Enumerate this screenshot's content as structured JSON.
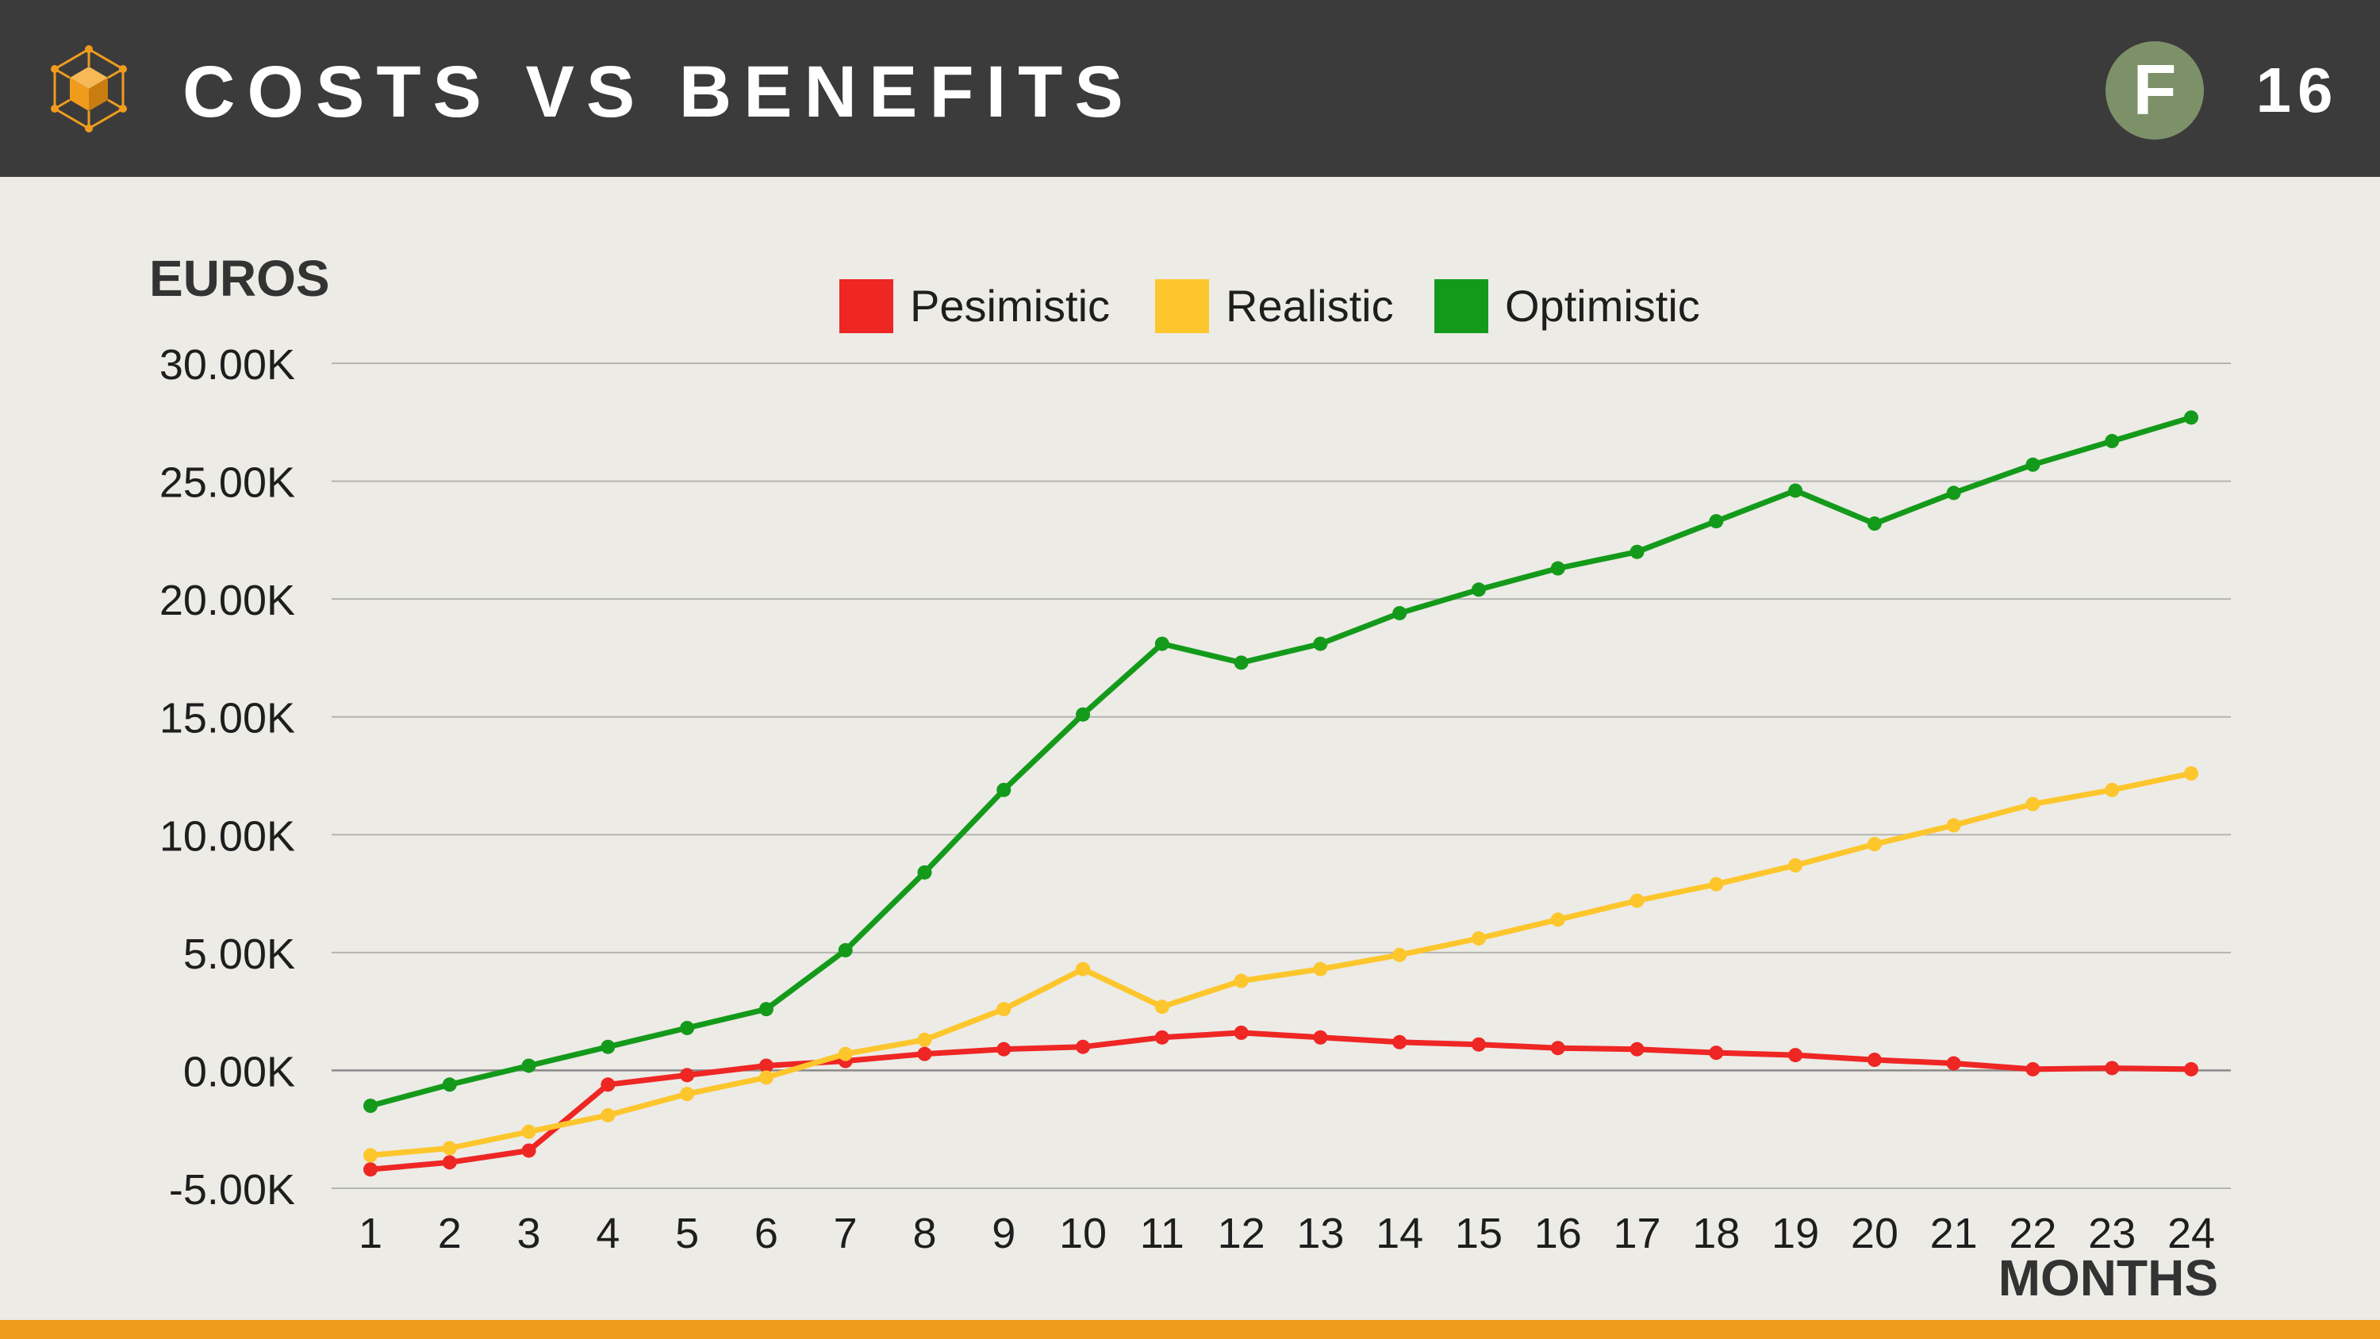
{
  "header": {
    "title": "COSTS VS BENEFITS",
    "avatar_letter": "F",
    "page_number": "16",
    "logo_icon": "cube-network-icon",
    "background_color": "#3b3b3b",
    "accent_color": "#ef9c1d"
  },
  "chart_data": {
    "type": "line",
    "title": "",
    "ylabel": "EUROS",
    "xlabel": "MONTHS",
    "x": [
      1,
      2,
      3,
      4,
      5,
      6,
      7,
      8,
      9,
      10,
      11,
      12,
      13,
      14,
      15,
      16,
      17,
      18,
      19,
      20,
      21,
      22,
      23,
      24
    ],
    "ylim": [
      -5000,
      30000
    ],
    "yticks": [
      -5000,
      0,
      5000,
      10000,
      15000,
      20000,
      25000,
      30000
    ],
    "ytick_labels": [
      "-5.00K",
      "0.00K",
      "5.00K",
      "10.00K",
      "15.00K",
      "20.00K",
      "25.00K",
      "30.00K"
    ],
    "grid": true,
    "legend_position": "top-center",
    "series": [
      {
        "name": "Pesimistic",
        "color": "#ee2624",
        "values": [
          -4200,
          -3900,
          -3400,
          -600,
          -200,
          200,
          400,
          700,
          900,
          1000,
          1400,
          1600,
          1400,
          1200,
          1100,
          950,
          900,
          750,
          650,
          450,
          300,
          50,
          100,
          50
        ]
      },
      {
        "name": "Realistic",
        "color": "#fdc62c",
        "values": [
          -3600,
          -3300,
          -2600,
          -1900,
          -1000,
          -300,
          700,
          1300,
          2600,
          4300,
          2700,
          3800,
          4300,
          4900,
          5600,
          6400,
          7200,
          7900,
          8700,
          9600,
          10400,
          11300,
          11900,
          12600
        ]
      },
      {
        "name": "Optimistic",
        "color": "#149a1a",
        "values": [
          -1500,
          -600,
          200,
          1000,
          1800,
          2600,
          5100,
          8400,
          11900,
          15100,
          18100,
          17300,
          18100,
          19400,
          20400,
          21300,
          22000,
          23300,
          24600,
          23200,
          24500,
          25700,
          26700,
          27700
        ]
      }
    ]
  }
}
